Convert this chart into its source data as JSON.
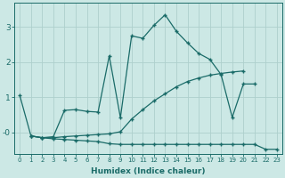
{
  "xlabel": "Humidex (Indice chaleur)",
  "bg_color": "#cce8e5",
  "grid_color": "#aed0cc",
  "line_color": "#1a6b68",
  "xlim": [
    -0.5,
    23.5
  ],
  "ylim": [
    -0.6,
    3.7
  ],
  "yticks": [
    0,
    1,
    2,
    3
  ],
  "ytick_labels": [
    "-0",
    "1",
    "2",
    "3"
  ],
  "xticks": [
    0,
    1,
    2,
    3,
    4,
    5,
    6,
    7,
    8,
    9,
    10,
    11,
    12,
    13,
    14,
    15,
    16,
    17,
    18,
    19,
    20,
    21,
    22,
    23
  ],
  "line1_x": [
    0,
    1,
    2,
    3,
    4,
    5,
    6,
    7,
    8,
    9,
    10,
    11,
    12,
    13,
    14,
    15,
    16,
    17,
    18,
    19,
    20,
    21
  ],
  "line1_y": [
    1.05,
    -0.1,
    -0.15,
    -0.12,
    0.63,
    0.65,
    0.6,
    0.58,
    2.18,
    0.42,
    2.75,
    2.68,
    3.05,
    3.35,
    2.88,
    2.55,
    2.25,
    2.08,
    1.65,
    0.43,
    1.38,
    1.38
  ],
  "line2_x": [
    1,
    2,
    3,
    4,
    5,
    6,
    7,
    8,
    9,
    10,
    11,
    12,
    13,
    14,
    15,
    16,
    17,
    18,
    19,
    20
  ],
  "line2_y": [
    -0.1,
    -0.15,
    -0.15,
    -0.12,
    -0.1,
    -0.08,
    -0.06,
    -0.04,
    0.02,
    0.38,
    0.65,
    0.9,
    1.1,
    1.3,
    1.45,
    1.55,
    1.63,
    1.68,
    1.72,
    1.75
  ],
  "line3_x": [
    1,
    2,
    3,
    4,
    5,
    6,
    7,
    8,
    9,
    10,
    11,
    12,
    13,
    14,
    15,
    16,
    17,
    18,
    19,
    20,
    21,
    22,
    23
  ],
  "line3_y": [
    -0.1,
    -0.15,
    -0.18,
    -0.2,
    -0.22,
    -0.24,
    -0.26,
    -0.32,
    -0.34,
    -0.34,
    -0.34,
    -0.34,
    -0.34,
    -0.34,
    -0.34,
    -0.34,
    -0.34,
    -0.34,
    -0.34,
    -0.34,
    -0.34,
    -0.48,
    -0.48
  ]
}
